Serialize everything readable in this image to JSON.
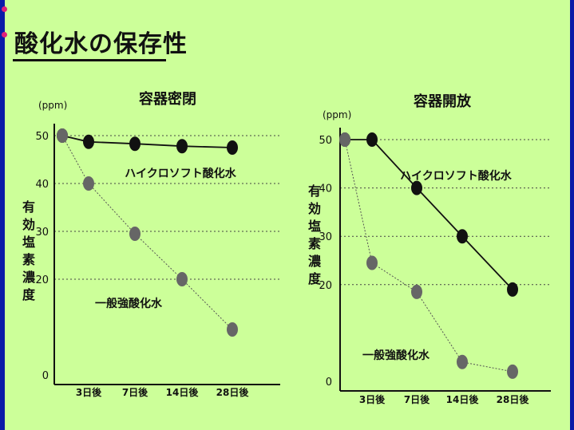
{
  "page": {
    "title": "酸化水の保存性",
    "accent_dot_color": "#e0207a"
  },
  "chart_data": [
    {
      "type": "line",
      "title": "容器密閉",
      "ylabel": "有効塩素濃度",
      "unit": "(ppm)",
      "ylim": [
        0,
        50
      ],
      "y_ticks": [
        0,
        20,
        30,
        40,
        50
      ],
      "categories": [
        "",
        "3日後",
        "7日後",
        "14日後",
        "28日後"
      ],
      "grid": "horizontal-dotted",
      "series": [
        {
          "name": "ハイクロソフト酸化水",
          "style": "solid",
          "color": "#111111",
          "values": [
            50,
            48.7,
            48.3,
            47.8,
            47.5
          ]
        },
        {
          "name": "一般強酸化水",
          "style": "dotted",
          "color": "#555555",
          "values": [
            50,
            40,
            29.5,
            20,
            9.5
          ]
        }
      ]
    },
    {
      "type": "line",
      "title": "容器開放",
      "ylabel": "有効塩素濃度",
      "unit": "(ppm)",
      "ylim": [
        0,
        50
      ],
      "y_ticks": [
        0,
        20,
        30,
        40,
        50
      ],
      "categories": [
        "",
        "3日後",
        "7日後",
        "14日後",
        "28日後"
      ],
      "grid": "horizontal-dotted",
      "series": [
        {
          "name": "ハイクロソフト酸化水",
          "style": "solid",
          "color": "#111111",
          "values": [
            50,
            50,
            40,
            30,
            19
          ]
        },
        {
          "name": "一般強酸化水",
          "style": "dotted",
          "color": "#555555",
          "values": [
            50,
            24.5,
            18.5,
            4,
            2
          ]
        }
      ]
    }
  ]
}
